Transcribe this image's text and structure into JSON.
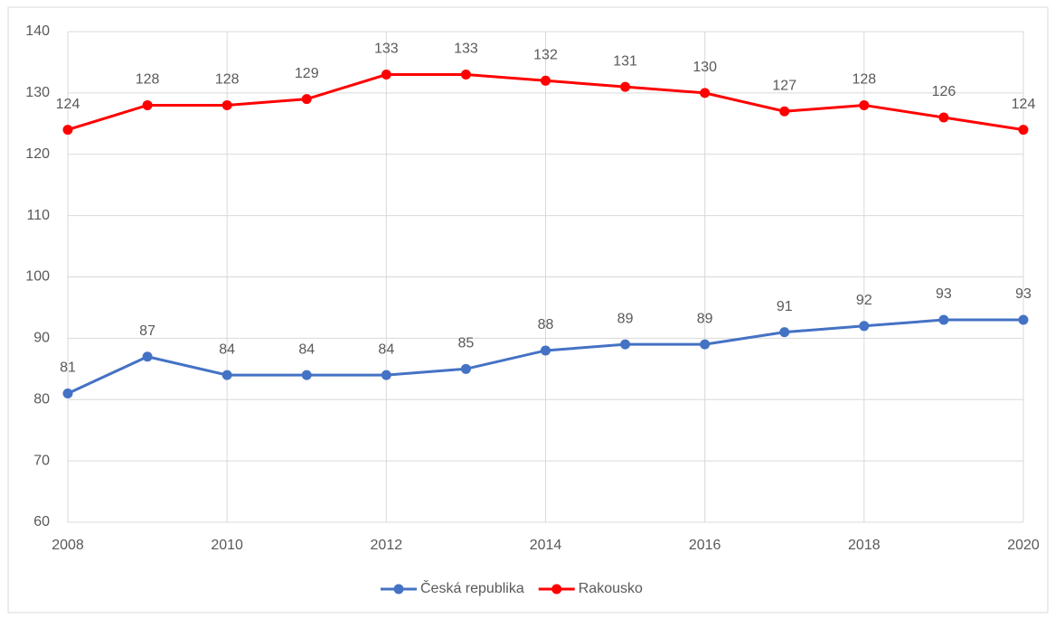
{
  "chart_data": {
    "type": "line",
    "x": [
      2008,
      2009,
      2010,
      2011,
      2012,
      2013,
      2014,
      2015,
      2016,
      2017,
      2018,
      2019,
      2020
    ],
    "series": [
      {
        "name": "Česká republika",
        "color": "#4472c4",
        "values": [
          81,
          87,
          84,
          84,
          84,
          85,
          88,
          89,
          89,
          91,
          92,
          93,
          93
        ]
      },
      {
        "name": "Rakousko",
        "color": "#ff0000",
        "values": [
          124,
          128,
          128,
          129,
          133,
          133,
          132,
          131,
          130,
          127,
          128,
          126,
          124
        ]
      }
    ],
    "xlim": [
      2008,
      2020
    ],
    "xticks": [
      2008,
      2010,
      2012,
      2014,
      2016,
      2018,
      2020
    ],
    "ylim": [
      60,
      140
    ],
    "yticks": [
      60,
      70,
      80,
      90,
      100,
      110,
      120,
      130,
      140
    ],
    "grid": true,
    "legend": "bottom",
    "data_labels": true
  }
}
